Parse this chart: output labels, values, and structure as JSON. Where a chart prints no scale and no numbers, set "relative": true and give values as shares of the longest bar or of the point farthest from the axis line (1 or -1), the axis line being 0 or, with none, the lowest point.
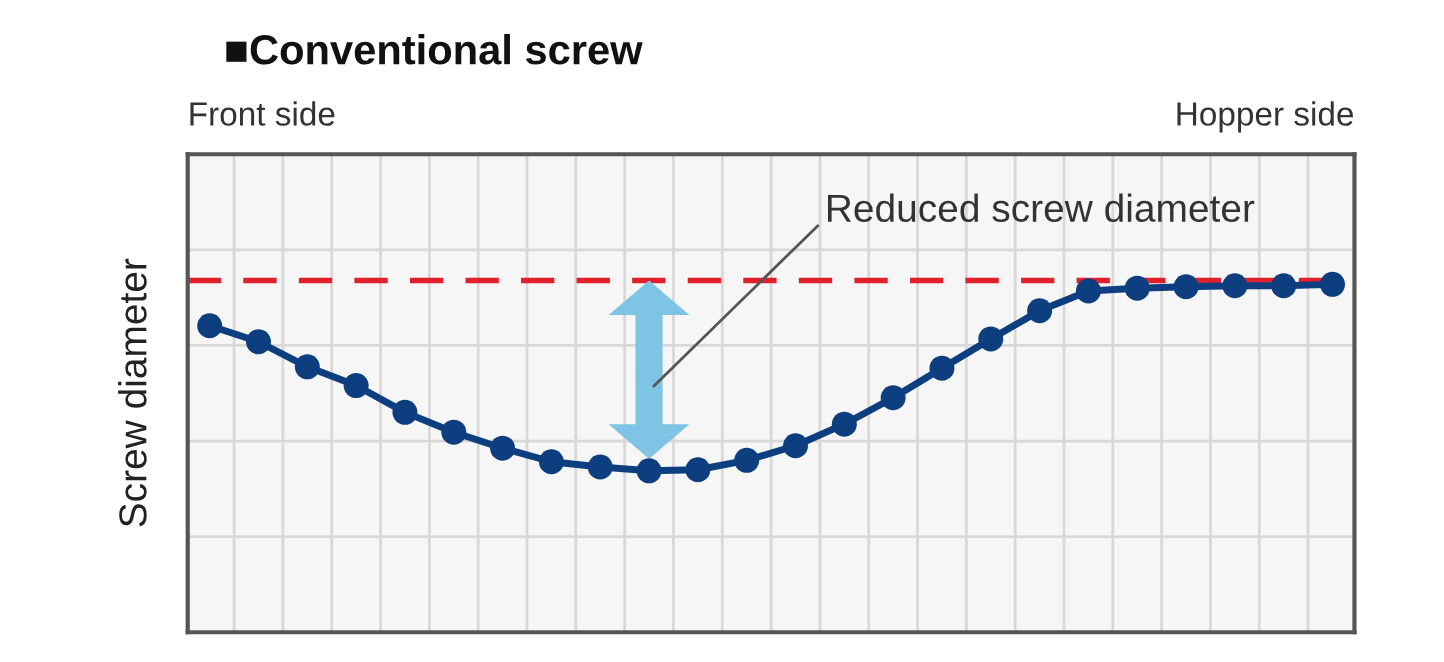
{
  "chart_data": {
    "type": "line",
    "title": "■Conventional screw",
    "ylabel": "Screw diameter",
    "categories": [
      null,
      null,
      null,
      null,
      null,
      null,
      null,
      null,
      null,
      null,
      null,
      null,
      null,
      null,
      null,
      null,
      null,
      null,
      null,
      null,
      null,
      null,
      null,
      null
    ],
    "relative": true,
    "series": [
      {
        "color": "#0d3f80",
        "values": [
          0.881,
          0.835,
          0.763,
          0.709,
          0.632,
          0.575,
          0.529,
          0.49,
          0.475,
          0.464,
          0.467,
          0.494,
          0.536,
          0.598,
          0.674,
          0.759,
          0.843,
          0.924,
          0.981,
          0.989,
          0.993,
          0.996,
          0.996,
          1
        ]
      }
    ],
    "ref_lines": [
      {
        "axis": "y",
        "value": 1.011,
        "color": "#e0202a",
        "line_style": "dashed"
      }
    ],
    "annotations": [
      "Front side",
      "Hopper side",
      "Reduced screw diameter"
    ],
    "grid": true,
    "marker": "circle",
    "line_style": "solid",
    "legend": false
  }
}
